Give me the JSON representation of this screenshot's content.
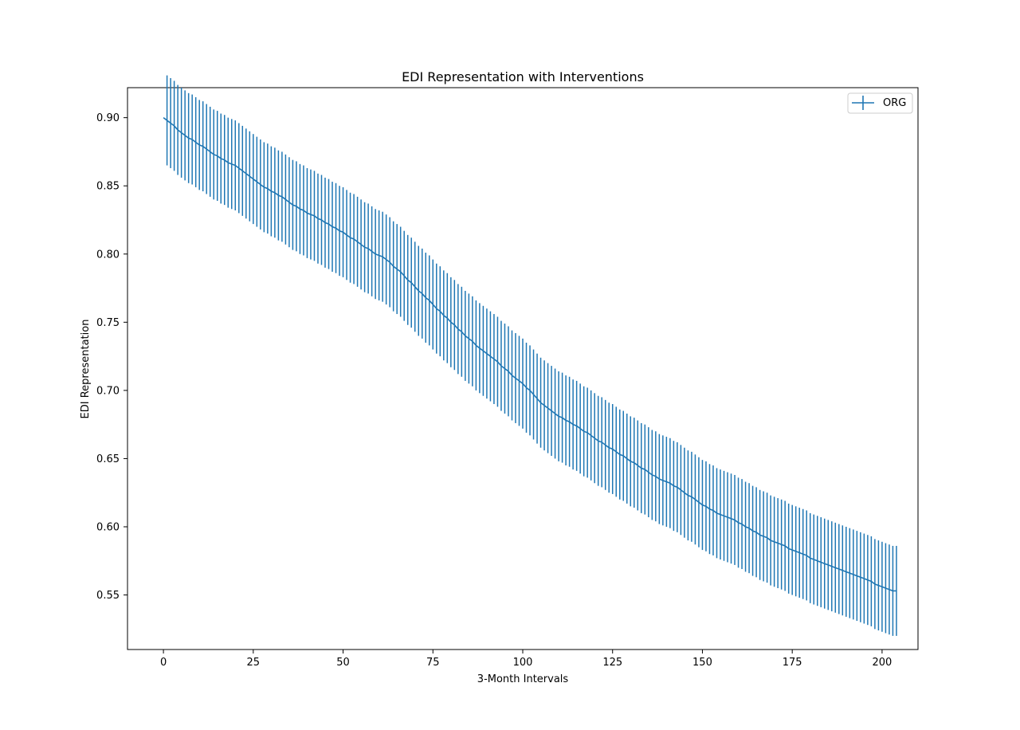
{
  "chart_data": {
    "type": "line",
    "title": "EDI Representation with Interventions",
    "xlabel": "3-Month Intervals",
    "ylabel": "EDI Representation",
    "xlim": [
      -10,
      210
    ],
    "ylim": [
      0.51,
      0.922
    ],
    "xticks": [
      0,
      25,
      50,
      75,
      100,
      125,
      150,
      175,
      200
    ],
    "yticks": [
      0.55,
      0.6,
      0.65,
      0.7,
      0.75,
      0.8,
      0.85,
      0.9
    ],
    "xtick_labels": [
      "0",
      "25",
      "50",
      "75",
      "100",
      "125",
      "150",
      "175",
      "200"
    ],
    "ytick_labels": [
      "0.55",
      "0.60",
      "0.65",
      "0.70",
      "0.75",
      "0.80",
      "0.85",
      "0.90"
    ],
    "grid": false,
    "legend_position": "top-right",
    "series": [
      {
        "name": "ORG",
        "color": "#1f77b4",
        "x_start": 0,
        "x_step": 1,
        "values": [
          0.9,
          0.898,
          0.896,
          0.894,
          0.891,
          0.889,
          0.887,
          0.885,
          0.884,
          0.882,
          0.88,
          0.879,
          0.877,
          0.875,
          0.873,
          0.872,
          0.87,
          0.869,
          0.867,
          0.866,
          0.865,
          0.863,
          0.861,
          0.859,
          0.857,
          0.855,
          0.853,
          0.851,
          0.849,
          0.848,
          0.846,
          0.845,
          0.843,
          0.842,
          0.84,
          0.838,
          0.836,
          0.835,
          0.833,
          0.832,
          0.83,
          0.829,
          0.828,
          0.826,
          0.825,
          0.823,
          0.822,
          0.82,
          0.819,
          0.817,
          0.816,
          0.814,
          0.812,
          0.811,
          0.809,
          0.807,
          0.805,
          0.804,
          0.802,
          0.8,
          0.799,
          0.798,
          0.796,
          0.794,
          0.791,
          0.789,
          0.787,
          0.784,
          0.781,
          0.779,
          0.776,
          0.773,
          0.771,
          0.768,
          0.766,
          0.763,
          0.76,
          0.758,
          0.755,
          0.753,
          0.75,
          0.748,
          0.745,
          0.743,
          0.74,
          0.738,
          0.736,
          0.733,
          0.731,
          0.729,
          0.727,
          0.725,
          0.723,
          0.721,
          0.718,
          0.716,
          0.714,
          0.711,
          0.709,
          0.707,
          0.705,
          0.702,
          0.7,
          0.697,
          0.694,
          0.691,
          0.689,
          0.687,
          0.685,
          0.683,
          0.681,
          0.68,
          0.678,
          0.677,
          0.675,
          0.674,
          0.672,
          0.67,
          0.669,
          0.667,
          0.665,
          0.663,
          0.662,
          0.66,
          0.658,
          0.657,
          0.655,
          0.653,
          0.652,
          0.65,
          0.648,
          0.647,
          0.645,
          0.643,
          0.642,
          0.64,
          0.638,
          0.637,
          0.635,
          0.634,
          0.633,
          0.632,
          0.63,
          0.629,
          0.627,
          0.625,
          0.623,
          0.622,
          0.62,
          0.618,
          0.616,
          0.615,
          0.613,
          0.612,
          0.61,
          0.609,
          0.608,
          0.607,
          0.606,
          0.605,
          0.603,
          0.602,
          0.6,
          0.599,
          0.597,
          0.596,
          0.594,
          0.593,
          0.592,
          0.59,
          0.589,
          0.588,
          0.587,
          0.586,
          0.584,
          0.583,
          0.582,
          0.581,
          0.58,
          0.579,
          0.577,
          0.576,
          0.575,
          0.574,
          0.573,
          0.572,
          0.571,
          0.57,
          0.569,
          0.568,
          0.567,
          0.566,
          0.565,
          0.564,
          0.563,
          0.562,
          0.561,
          0.56,
          0.558,
          0.557,
          0.556,
          0.555,
          0.554,
          0.553,
          0.553
        ],
        "error": 0.033
      }
    ]
  }
}
